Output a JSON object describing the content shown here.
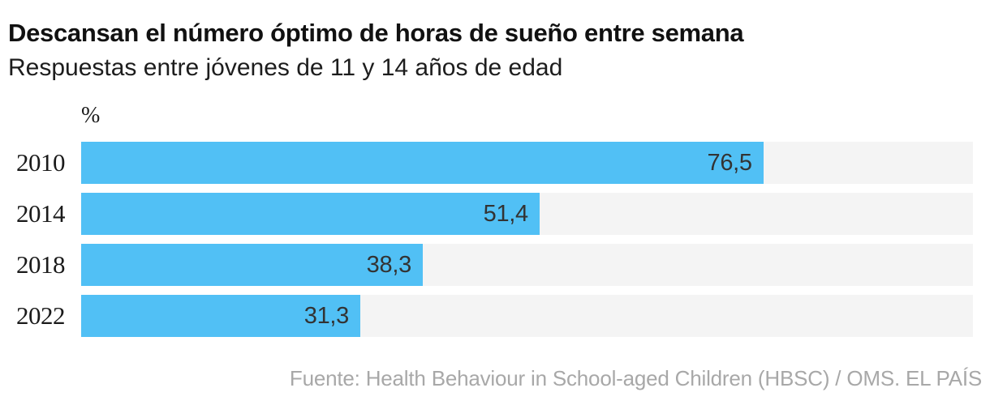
{
  "header": {
    "title": "Descansan el número óptimo de horas de sueño entre semana",
    "subtitle": "Respuestas entre jóvenes de 11 y 14 años de edad"
  },
  "chart": {
    "unit_label": "%"
  },
  "chart_data": {
    "type": "bar",
    "orientation": "horizontal",
    "title": "Descansan el número óptimo de horas de sueño entre semana",
    "subtitle": "Respuestas entre jóvenes de 11 y 14 años de edad",
    "categories": [
      "2010",
      "2014",
      "2018",
      "2022"
    ],
    "values": [
      76.5,
      51.4,
      38.3,
      31.3
    ],
    "value_labels": [
      "76,5",
      "51,4",
      "38,3",
      "31,3"
    ],
    "xlabel": "%",
    "ylabel": "",
    "xlim": [
      0,
      100
    ],
    "grid": false,
    "legend": false,
    "bar_color": "#51c0f5",
    "track_color": "#f4f4f4",
    "value_label_position": "inside-end"
  },
  "footer": {
    "source": "Fuente: Health Behaviour in School-aged Children (HBSC) / OMS. EL PAÍS"
  }
}
